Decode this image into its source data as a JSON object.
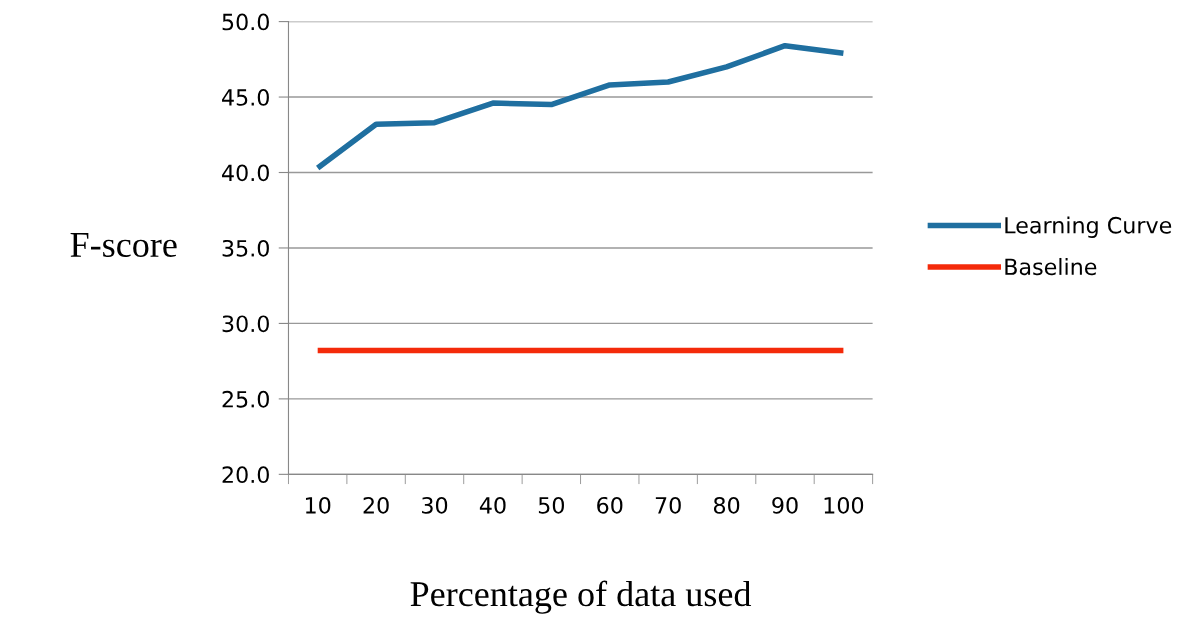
{
  "chart_data": {
    "type": "line",
    "xlabel": "Percentage of data used",
    "ylabel": "F-score",
    "categories": [
      "10",
      "20",
      "30",
      "40",
      "50",
      "60",
      "70",
      "80",
      "90",
      "100"
    ],
    "series": [
      {
        "name": "Learning Curve",
        "color": "#1f6fa0",
        "values": [
          40.3,
          43.2,
          43.3,
          44.6,
          44.5,
          45.8,
          46.0,
          47.0,
          48.4,
          47.9
        ]
      },
      {
        "name": "Baseline",
        "color": "#f42a0a",
        "values": [
          28.2,
          28.2,
          28.2,
          28.2,
          28.2,
          28.2,
          28.2,
          28.2,
          28.2,
          28.2
        ]
      }
    ],
    "ylim": [
      20,
      50
    ],
    "yticks": [
      {
        "value": 20,
        "label": "20.0"
      },
      {
        "value": 25,
        "label": "25.0"
      },
      {
        "value": 30,
        "label": "30.0"
      },
      {
        "value": 35,
        "label": "35.0"
      },
      {
        "value": 40,
        "label": "40.0"
      },
      {
        "value": 45,
        "label": "45.0"
      },
      {
        "value": 50,
        "label": "50.0"
      }
    ],
    "grid": "y",
    "legend": "right",
    "marker": "none",
    "line_style": "solid"
  }
}
